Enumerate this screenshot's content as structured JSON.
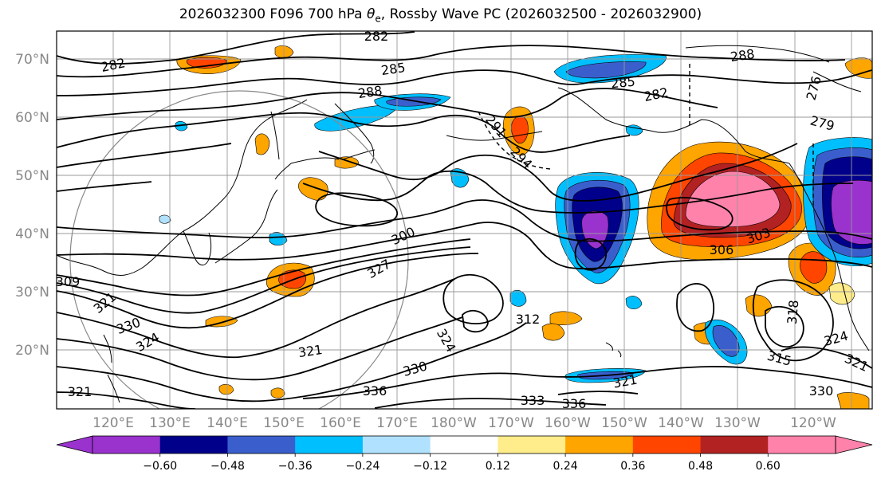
{
  "title": {
    "prefix": "2026032300 F096 700 hPa ",
    "symbol": "θ",
    "subscript": "e",
    "suffix": ", Rossby Wave PC (2026032500 - 2026032900)"
  },
  "lat_labels": [
    "70°N",
    "60°N",
    "50°N",
    "40°N",
    "30°N",
    "20°N"
  ],
  "lon_labels": [
    "120°E",
    "130°E",
    "140°E",
    "150°E",
    "160°E",
    "170°E",
    "180°W",
    "170°W",
    "160°W",
    "150°W",
    "140°W",
    "130°W",
    "120°W"
  ],
  "contour_labels": [
    "282",
    "282",
    "285",
    "288",
    "288",
    "285",
    "282",
    "276",
    "279",
    "291",
    "294",
    "300",
    "303",
    "306",
    "309",
    "312",
    "315",
    "318",
    "321",
    "321",
    "321",
    "324",
    "324",
    "324",
    "327",
    "330",
    "330",
    "330",
    "333",
    "336",
    "336",
    "321",
    "321"
  ],
  "colorbar": {
    "ticks": [
      "−0.60",
      "−0.48",
      "−0.36",
      "−0.24",
      "−0.12",
      "0.12",
      "0.24",
      "0.36",
      "0.48",
      "0.60"
    ],
    "colors": [
      "#9a32cd",
      "#00008b",
      "#3a5fcd",
      "#00bfff",
      "#b0e2ff",
      "#ffffff",
      "#ffec8b",
      "#ffa500",
      "#ff4500",
      "#b22222",
      "#ff82ab",
      "#ff82ab"
    ],
    "under": "#9a32cd",
    "over": "#ff82ab"
  }
}
